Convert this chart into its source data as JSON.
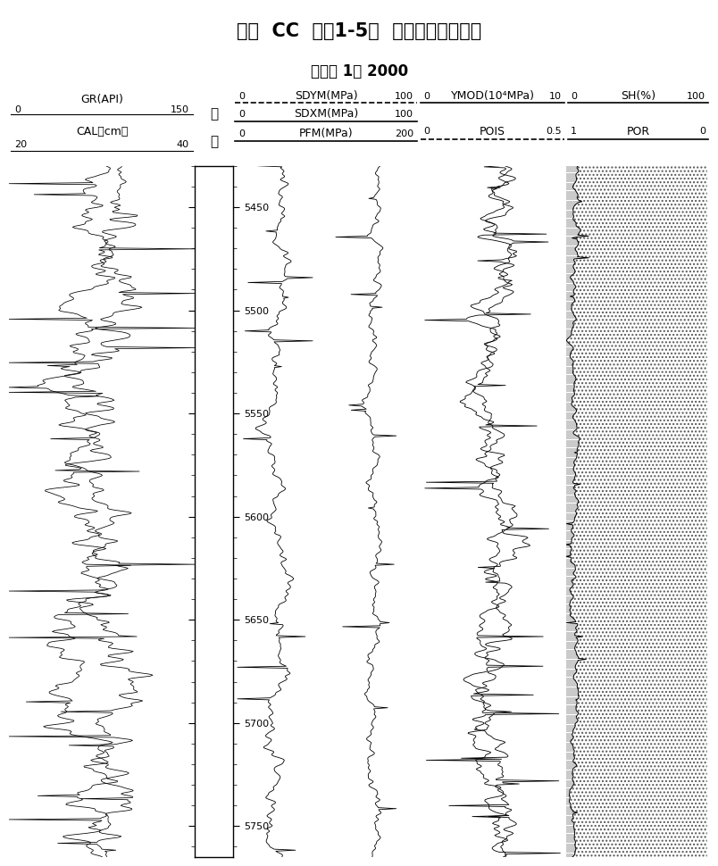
{
  "title": "焦页  CC  井－1-5段  地应力计算成果图",
  "subtitle": "比例尺 1： 2000",
  "depth_min": 5430,
  "depth_max": 5765,
  "depth_ticks": [
    5450,
    5500,
    5550,
    5600,
    5650,
    5700,
    5750
  ],
  "depth_minor_step": 10,
  "col2_char1": "深",
  "col2_char2": "度",
  "gr_label": "GR(API)",
  "gr_min": 0,
  "gr_max": 150,
  "cal_label": "CAL（cm）",
  "cal_min": 20,
  "cal_max": 40,
  "sdym_label": "SDYM(MPa)",
  "sdym_min": 0,
  "sdym_max": 100,
  "sdxm_label": "SDXM(MPa)",
  "sdxm_min": 0,
  "sdxm_max": 100,
  "pfm_label": "PFM(MPa)",
  "pfm_min": 0,
  "pfm_max": 200,
  "ymod_label": "YMOD(10⁴MPa)",
  "ymod_min": 0,
  "ymod_max": 10,
  "pois_label": "POIS",
  "pois_min": 0,
  "pois_max": 0.5,
  "sh_label": "SH(%)",
  "sh_min": 0,
  "sh_max": 100,
  "por_label": "POR",
  "por_min": 1,
  "por_max": 0,
  "bg_color": "#ffffff",
  "line_color": "#000000",
  "seed": 42,
  "n_points": 700
}
